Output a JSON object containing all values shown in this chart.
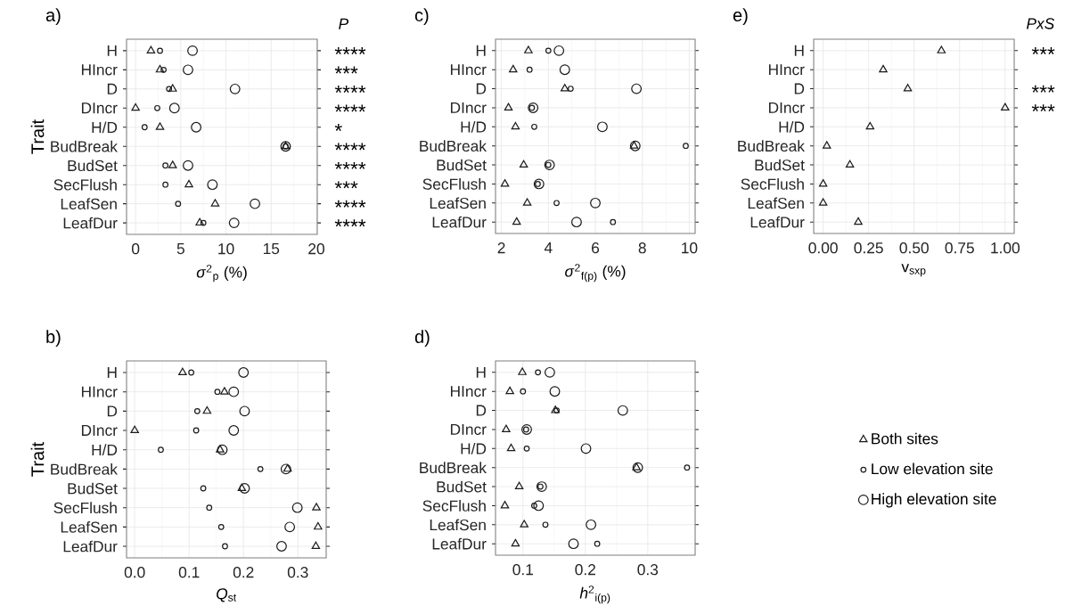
{
  "chart_data": [
    {
      "type": "scatter",
      "orientation": "horizontal",
      "title": "a)",
      "xlabel": "*σ*$^{2}$$_{p}$ (%)",
      "ylabel": "Trait",
      "categories": [
        "H",
        "HIncr",
        "D",
        "DIncr",
        "H/D",
        "BudBreak",
        "BudSet",
        "SecFlush",
        "LeafSen",
        "LeafDur"
      ],
      "series": [
        {
          "color": "#1a1a1a",
          "marker": "triangle",
          "values": [
            1.7,
            2.7,
            4.1,
            0,
            2.7,
            16.6,
            4.1,
            5.9,
            8.8,
            7.1
          ]
        },
        {
          "color": "#1a1a1a",
          "marker": "circle",
          "values": [
            2.7,
            3.1,
            3.7,
            2.4,
            1.0,
            16.6,
            3.3,
            3.3,
            4.7,
            7.5
          ]
        },
        {
          "color": "#1a1a1a",
          "marker": "circle",
          "values": [
            6.3,
            5.8,
            11.0,
            4.3,
            6.7,
            16.6,
            5.8,
            8.5,
            13.2,
            10.9
          ]
        }
      ],
      "xlim": [
        -1.0,
        20.1
      ],
      "xticks": [
        0,
        5,
        10,
        15,
        20
      ],
      "grid": true,
      "annotations": [
        "P",
        "****",
        "***",
        "****",
        "****",
        "*",
        "****",
        "****",
        "***",
        "****",
        "****"
      ]
    },
    {
      "type": "scatter",
      "orientation": "horizontal",
      "title": "c)",
      "xlabel": "*σ*$^{2}$$_{f(p)}$ (%)",
      "categories": [
        "H",
        "HIncr",
        "D",
        "DIncr",
        "H/D",
        "BudBreak",
        "BudSet",
        "SecFlush",
        "LeafSen",
        "LeafDur"
      ],
      "series": [
        {
          "color": "#1a1a1a",
          "marker": "triangle",
          "values": [
            3.15,
            2.5,
            4.7,
            2.3,
            2.6,
            7.65,
            2.95,
            2.15,
            3.1,
            2.65
          ]
        },
        {
          "color": "#1a1a1a",
          "marker": "circle",
          "values": [
            4.0,
            3.2,
            4.95,
            3.3,
            3.4,
            9.85,
            4.0,
            3.55,
            4.35,
            6.75
          ]
        },
        {
          "color": "#1a1a1a",
          "marker": "circle",
          "values": [
            4.45,
            4.7,
            7.75,
            3.35,
            6.3,
            7.7,
            4.05,
            3.6,
            6.0,
            5.2
          ]
        }
      ],
      "xlim": [
        1.75,
        10.25
      ],
      "xticks": [
        2,
        4,
        6,
        8,
        10
      ],
      "grid": true
    },
    {
      "type": "scatter",
      "orientation": "horizontal",
      "title": "e)",
      "xlabel": "v$_{sxp}$",
      "categories": [
        "H",
        "HIncr",
        "D",
        "DIncr",
        "H/D",
        "BudBreak",
        "BudSet",
        "SecFlush",
        "LeafSen",
        "LeafDur"
      ],
      "series": [
        {
          "color": "#1a1a1a",
          "marker": "triangle",
          "values": [
            0.65,
            0.33,
            0.465,
            1.0,
            0.258,
            0.02,
            0.147,
            0,
            0,
            0.193
          ]
        }
      ],
      "xlim": [
        -0.052,
        1.05
      ],
      "xticks": [
        {
          "value": 0,
          "label": "0.00"
        },
        {
          "value": 0.25,
          "label": "0.25"
        },
        {
          "value": 0.5,
          "label": "0.50"
        },
        {
          "value": 0.75,
          "label": "0.75"
        },
        {
          "value": 1,
          "label": "1.00"
        }
      ],
      "grid": true,
      "annotations": [
        "PxS",
        "***",
        "***",
        "***"
      ]
    },
    {
      "type": "scatter",
      "orientation": "horizontal",
      "title": "b)",
      "xlabel": "*Q*$_{st}$",
      "ylabel": "Trait",
      "categories": [
        "H",
        "HIncr",
        "D",
        "DIncr",
        "H/D",
        "BudBreak",
        "BudSet",
        "SecFlush",
        "LeafSen",
        "LeafDur"
      ],
      "series": [
        {
          "color": "#1a1a1a",
          "marker": "triangle",
          "values": [
            0.088,
            0.165,
            0.133,
            0.0,
            0.157,
            0.281,
            0.197,
            0.334,
            0.337,
            0.333
          ]
        },
        {
          "color": "#1a1a1a",
          "marker": "circle",
          "values": [
            0.104,
            0.152,
            0.115,
            0.113,
            0.048,
            0.231,
            0.126,
            0.137,
            0.159,
            0.166
          ]
        },
        {
          "color": "#1a1a1a",
          "marker": "circle",
          "values": [
            0.2,
            0.182,
            0.202,
            0.182,
            0.161,
            0.278,
            0.202,
            0.299,
            0.285,
            0.27
          ]
        }
      ],
      "xlim": [
        -0.015,
        0.352
      ],
      "xticks": [
        {
          "value": 0,
          "label": "0.0"
        },
        0.1,
        0.2,
        0.3
      ],
      "grid": true
    },
    {
      "type": "scatter",
      "orientation": "horizontal",
      "title": "d)",
      "xlabel": "*h*$^{2}$$_{i(p)}$",
      "categories": [
        "H",
        "HIncr",
        "D",
        "DIncr",
        "H/D",
        "BudBreak",
        "BudSet",
        "SecFlush",
        "LeafSen",
        "LeafDur"
      ],
      "series": [
        {
          "name": "Both sites",
          "color": "#1a1a1a",
          "marker": "triangle",
          "values": [
            0.099,
            0.079,
            0.152,
            0.073,
            0.081,
            0.282,
            0.094,
            0.071,
            0.102,
            0.088
          ]
        },
        {
          "name": "Low elevation site",
          "color": "#1a1a1a",
          "marker": "circle",
          "values": [
            0.124,
            0.1,
            0.154,
            0.105,
            0.106,
            0.363,
            0.128,
            0.118,
            0.136,
            0.219
          ]
        },
        {
          "name": "High elevation site",
          "color": "#1a1a1a",
          "marker": "circle",
          "values": [
            0.143,
            0.151,
            0.26,
            0.106,
            0.201,
            0.284,
            0.13,
            0.125,
            0.209,
            0.181
          ]
        }
      ],
      "xlim": [
        0.056,
        0.376
      ],
      "xticks": [
        0.1,
        0.2,
        0.3
      ],
      "grid": true,
      "legend": "right"
    }
  ]
}
